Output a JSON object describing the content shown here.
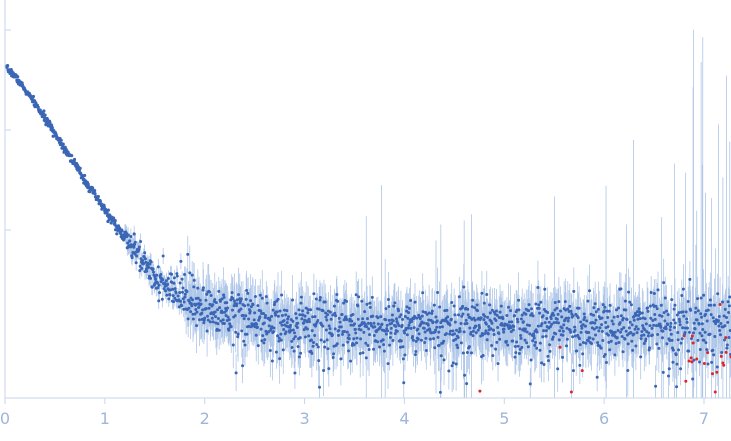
{
  "chart_data": {
    "type": "scatter",
    "title": "",
    "xlabel": "",
    "ylabel": "",
    "xlim": [
      0,
      7.27
    ],
    "ylog": true,
    "x_ticks": [
      "0",
      "1",
      "2",
      "3",
      "4",
      "5",
      "6",
      "7"
    ],
    "y_ticks_labeled": false,
    "grid": false,
    "legend": "none",
    "error_bars": true,
    "colors": {
      "points": "#3a66b5",
      "error_bars": "#aec6e8",
      "outliers": "#e0252a",
      "axis": "#c9d6ea",
      "tick_label": "#9fb6da"
    },
    "curve": {
      "description_points": [
        {
          "x": 0.02,
          "y": 0.92
        },
        {
          "x": 0.1,
          "y": 0.89
        },
        {
          "x": 0.3,
          "y": 0.78
        },
        {
          "x": 0.6,
          "y": 0.6
        },
        {
          "x": 0.9,
          "y": 0.41
        },
        {
          "x": 1.2,
          "y": 0.24
        },
        {
          "x": 1.4,
          "y": 0.14
        },
        {
          "x": 1.6,
          "y": 0.04
        },
        {
          "x": 2.0,
          "y": -0.04
        },
        {
          "x": 2.5,
          "y": -0.08
        },
        {
          "x": 3.0,
          "y": -0.1
        },
        {
          "x": 4.0,
          "y": -0.11
        },
        {
          "x": 5.0,
          "y": -0.11
        },
        {
          "x": 6.0,
          "y": -0.11
        },
        {
          "x": 7.2,
          "y": -0.1
        }
      ],
      "n_points": 1800,
      "seed": 7
    }
  }
}
